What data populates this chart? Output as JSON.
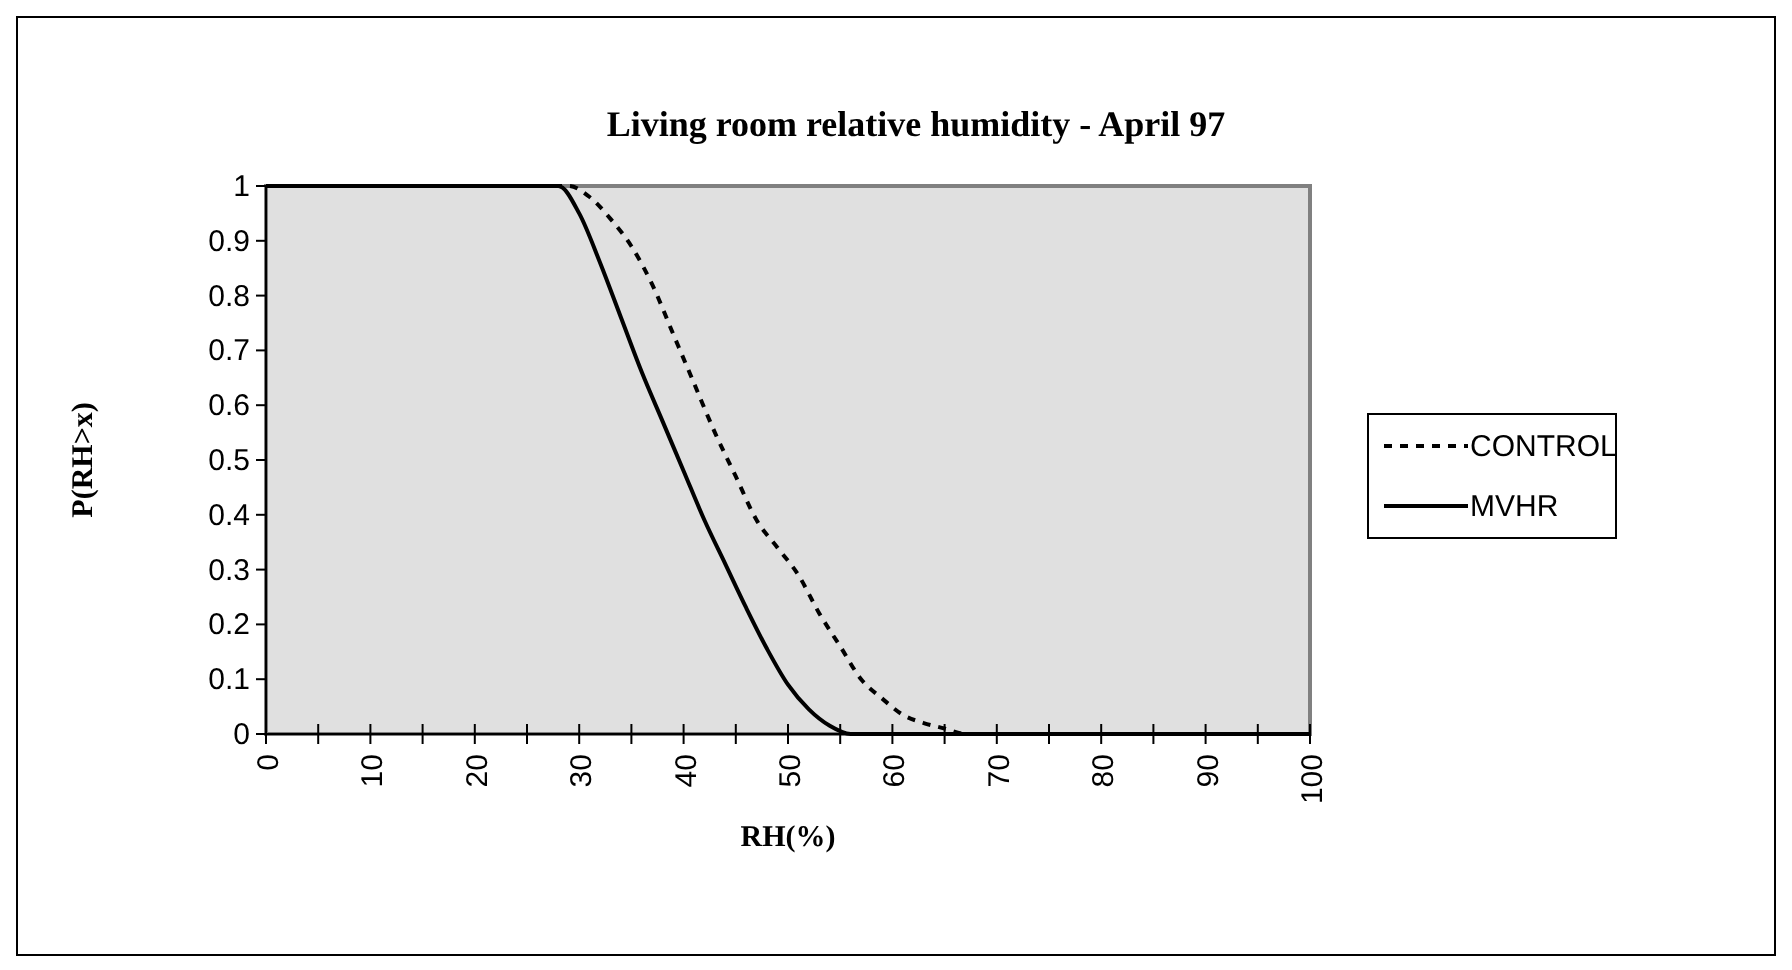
{
  "chart_data": {
    "type": "line",
    "title": "Living room relative humidity - April 97",
    "xlabel": "RH(%)",
    "ylabel": "P(RH>x)",
    "xlim": [
      0,
      100
    ],
    "ylim": [
      0,
      1
    ],
    "xticks": [
      0,
      {
        "value": 5,
        "label": null
      },
      10,
      {
        "value": 15,
        "label": null
      },
      20,
      {
        "value": 25,
        "label": null
      },
      30,
      {
        "value": 35,
        "label": null
      },
      40,
      {
        "value": 45,
        "label": null
      },
      50,
      {
        "value": 55,
        "label": null
      },
      60,
      {
        "value": 65,
        "label": null
      },
      70,
      {
        "value": 75,
        "label": null
      },
      80,
      {
        "value": 85,
        "label": null
      },
      90,
      {
        "value": 95,
        "label": null
      },
      100
    ],
    "yticks": [
      0,
      0.1,
      0.2,
      0.3,
      0.4,
      0.5,
      0.6,
      0.7,
      0.8,
      0.9,
      1
    ],
    "grid": false,
    "legend": "right",
    "series": [
      {
        "name": "CONTROL",
        "color": "#000000",
        "line_style": "dashed",
        "x": [
          0,
          29,
          31,
          33,
          35,
          37,
          39,
          41,
          43,
          45,
          47,
          49,
          51,
          53,
          55,
          57,
          59,
          61,
          63,
          65,
          67,
          100
        ],
        "values": [
          1,
          1,
          0.98,
          0.94,
          0.89,
          0.82,
          0.73,
          0.64,
          0.55,
          0.47,
          0.39,
          0.34,
          0.29,
          0.22,
          0.16,
          0.1,
          0.065,
          0.035,
          0.02,
          0.01,
          0,
          0
        ]
      },
      {
        "name": "MVHR",
        "color": "#000000",
        "line_style": "solid",
        "x": [
          0,
          28,
          30,
          32,
          34,
          36,
          38,
          40,
          42,
          44,
          46,
          48,
          50,
          52,
          54,
          56,
          100
        ],
        "values": [
          1,
          1,
          0.95,
          0.86,
          0.76,
          0.66,
          0.57,
          0.48,
          0.39,
          0.31,
          0.23,
          0.155,
          0.09,
          0.045,
          0.015,
          0,
          0
        ]
      }
    ]
  }
}
